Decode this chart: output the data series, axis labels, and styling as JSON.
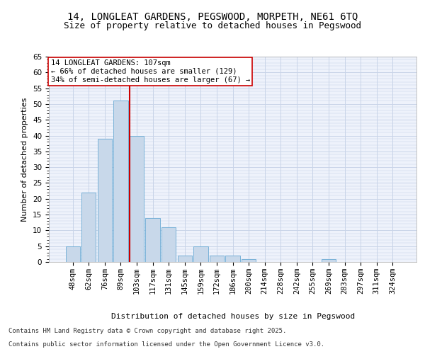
{
  "title1": "14, LONGLEAT GARDENS, PEGSWOOD, MORPETH, NE61 6TQ",
  "title2": "Size of property relative to detached houses in Pegswood",
  "xlabel": "Distribution of detached houses by size in Pegswood",
  "ylabel": "Number of detached properties",
  "bar_labels": [
    "48sqm",
    "62sqm",
    "76sqm",
    "89sqm",
    "103sqm",
    "117sqm",
    "131sqm",
    "145sqm",
    "159sqm",
    "172sqm",
    "186sqm",
    "200sqm",
    "214sqm",
    "228sqm",
    "242sqm",
    "255sqm",
    "269sqm",
    "283sqm",
    "297sqm",
    "311sqm",
    "324sqm"
  ],
  "bar_values": [
    5,
    22,
    39,
    51,
    40,
    14,
    11,
    2,
    5,
    2,
    2,
    1,
    0,
    0,
    0,
    0,
    1,
    0,
    0,
    0,
    0
  ],
  "bar_color": "#c8d8ea",
  "bar_edge_color": "#6aaad4",
  "vline_color": "#cc0000",
  "vline_x": 4.0,
  "annotation_text": "14 LONGLEAT GARDENS: 107sqm\n← 66% of detached houses are smaller (129)\n34% of semi-detached houses are larger (67) →",
  "annotation_box_edge": "#cc0000",
  "ylim": [
    0,
    65
  ],
  "yticks": [
    0,
    5,
    10,
    15,
    20,
    25,
    30,
    35,
    40,
    45,
    50,
    55,
    60,
    65
  ],
  "grid_color": "#c8d4e8",
  "background_color": "#eef2fb",
  "footer1": "Contains HM Land Registry data © Crown copyright and database right 2025.",
  "footer2": "Contains public sector information licensed under the Open Government Licence v3.0.",
  "title_fontsize": 10,
  "title2_fontsize": 9,
  "axis_label_fontsize": 8,
  "tick_fontsize": 7.5,
  "annotation_fontsize": 7.5,
  "footer_fontsize": 6.5
}
